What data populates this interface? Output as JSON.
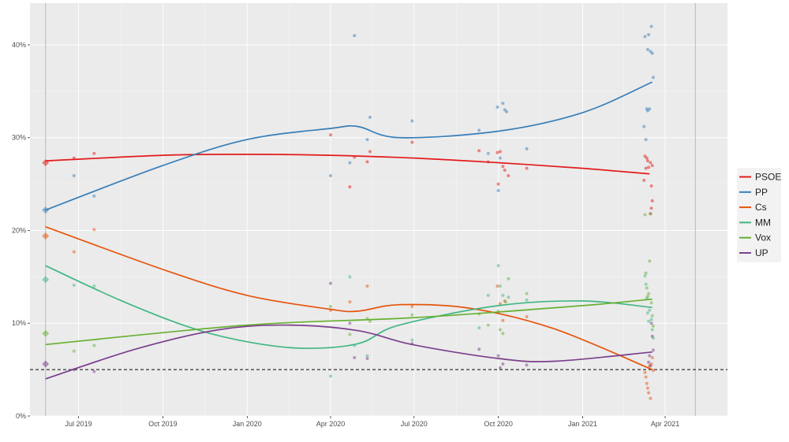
{
  "chart_data": {
    "type": "scatter",
    "title": "",
    "xlabel": "",
    "ylabel": "",
    "x_axis": {
      "type": "date",
      "range": [
        "2019-05-09",
        "2021-06-08"
      ],
      "ticks": [
        {
          "date": "2019-07-01",
          "label": "Jul 2019"
        },
        {
          "date": "2019-10-01",
          "label": "Oct 2019"
        },
        {
          "date": "2020-01-01",
          "label": "Jan 2020"
        },
        {
          "date": "2020-04-01",
          "label": "Apr 2020"
        },
        {
          "date": "2020-07-01",
          "label": "Jul 2020"
        },
        {
          "date": "2020-10-01",
          "label": "Oct 2020"
        },
        {
          "date": "2021-01-01",
          "label": "Jan 2021"
        },
        {
          "date": "2021-04-01",
          "label": "Apr 2021"
        }
      ]
    },
    "y_axis": {
      "range": [
        0,
        44.5
      ],
      "ticks": [
        {
          "value": 0,
          "label": "0%"
        },
        {
          "value": 10,
          "label": "10%"
        },
        {
          "value": 20,
          "label": "20%"
        },
        {
          "value": 30,
          "label": "30%"
        },
        {
          "value": 40,
          "label": "40%"
        }
      ]
    },
    "reference_lines": [
      {
        "kind": "vertical",
        "date": "2019-05-26"
      },
      {
        "kind": "vertical",
        "date": "2021-05-04"
      },
      {
        "kind": "horizontal",
        "value": 5,
        "style": "dashed"
      }
    ],
    "legend": {
      "position": "right",
      "entries": [
        "PSOE",
        "PP",
        "Cs",
        "MM",
        "Vox",
        "UP"
      ]
    },
    "series": [
      {
        "name": "PSOE",
        "color": "#E41A1C",
        "election": {
          "date": "2019-05-26",
          "value": 27.3
        },
        "trend": [
          [
            "2019-05-26",
            27.5
          ],
          [
            "2019-10-01",
            28.1
          ],
          [
            "2020-01-01",
            28.2
          ],
          [
            "2020-04-01",
            28.1
          ],
          [
            "2020-07-01",
            27.8
          ],
          [
            "2020-10-01",
            27.3
          ],
          [
            "2021-01-01",
            26.7
          ],
          [
            "2021-03-15",
            26.1
          ]
        ],
        "polls": [
          [
            "2019-06-26",
            27.8
          ],
          [
            "2019-07-18",
            28.3
          ],
          [
            "2020-04-01",
            30.3
          ],
          [
            "2020-04-22",
            24.7
          ],
          [
            "2020-04-27",
            27.9
          ],
          [
            "2020-05-11",
            27.4
          ],
          [
            "2020-05-14",
            28.5
          ],
          [
            "2020-06-29",
            29.5
          ],
          [
            "2020-09-10",
            28.6
          ],
          [
            "2020-09-20",
            27.4
          ],
          [
            "2020-09-30",
            28.4
          ],
          [
            "2020-10-01",
            25.0
          ],
          [
            "2020-10-03",
            28.5
          ],
          [
            "2020-10-06",
            26.9
          ],
          [
            "2020-10-08",
            26.5
          ],
          [
            "2020-10-12",
            25.9
          ],
          [
            "2020-11-01",
            26.7
          ],
          [
            "2021-03-10",
            28.0
          ],
          [
            "2021-03-11",
            26.7
          ],
          [
            "2021-03-12",
            27.8
          ],
          [
            "2021-03-13",
            27.5
          ],
          [
            "2021-03-14",
            26.8
          ],
          [
            "2021-03-16",
            27.3
          ],
          [
            "2021-03-17",
            24.8
          ],
          [
            "2021-03-18",
            23.2
          ],
          [
            "2021-03-17",
            22.4
          ],
          [
            "2021-03-16",
            21.8
          ],
          [
            "2021-03-09",
            25.4
          ],
          [
            "2021-03-18",
            27.0
          ]
        ]
      },
      {
        "name": "PP",
        "color": "#377EB8",
        "election": {
          "date": "2019-05-26",
          "value": 22.2
        },
        "trend": [
          [
            "2019-05-26",
            22.2
          ],
          [
            "2019-10-01",
            27.0
          ],
          [
            "2020-01-01",
            29.8
          ],
          [
            "2020-04-01",
            31.0
          ],
          [
            "2020-05-01",
            31.2
          ],
          [
            "2020-06-15",
            30.0
          ],
          [
            "2020-10-01",
            30.7
          ],
          [
            "2021-01-01",
            32.7
          ],
          [
            "2021-03-18",
            36.0
          ]
        ],
        "polls": [
          [
            "2019-06-26",
            25.9
          ],
          [
            "2019-07-18",
            23.7
          ],
          [
            "2020-04-01",
            25.9
          ],
          [
            "2020-04-22",
            27.3
          ],
          [
            "2020-04-27",
            41.0
          ],
          [
            "2020-05-11",
            29.8
          ],
          [
            "2020-05-14",
            32.2
          ],
          [
            "2020-06-29",
            31.8
          ],
          [
            "2020-09-10",
            30.8
          ],
          [
            "2020-09-20",
            28.3
          ],
          [
            "2020-09-30",
            33.3
          ],
          [
            "2020-10-03",
            27.8
          ],
          [
            "2020-10-06",
            33.7
          ],
          [
            "2020-10-08",
            33.0
          ],
          [
            "2020-10-10",
            32.8
          ],
          [
            "2020-10-01",
            24.3
          ],
          [
            "2020-11-01",
            28.8
          ],
          [
            "2021-03-10",
            40.9
          ],
          [
            "2021-03-11",
            29.8
          ],
          [
            "2021-03-12",
            33.1
          ],
          [
            "2021-03-13",
            39.5
          ],
          [
            "2021-03-14",
            41.1
          ],
          [
            "2021-03-15",
            33.1
          ],
          [
            "2021-03-16",
            39.3
          ],
          [
            "2021-03-17",
            42.0
          ],
          [
            "2021-03-18",
            39.1
          ],
          [
            "2021-03-19",
            36.5
          ],
          [
            "2021-03-09",
            31.2
          ],
          [
            "2021-03-13",
            32.9
          ]
        ]
      },
      {
        "name": "Cs",
        "color": "#E6550D",
        "election": {
          "date": "2019-05-26",
          "value": 19.4
        },
        "trend": [
          [
            "2019-05-26",
            20.4
          ],
          [
            "2019-10-01",
            15.8
          ],
          [
            "2020-01-01",
            13.0
          ],
          [
            "2020-04-01",
            11.5
          ],
          [
            "2020-05-01",
            11.3
          ],
          [
            "2020-06-15",
            12.0
          ],
          [
            "2020-09-01",
            11.6
          ],
          [
            "2020-12-01",
            9.4
          ],
          [
            "2021-03-18",
            5.0
          ]
        ],
        "polls": [
          [
            "2019-06-26",
            17.7
          ],
          [
            "2019-07-18",
            20.1
          ],
          [
            "2020-04-01",
            11.4
          ],
          [
            "2020-04-22",
            12.3
          ],
          [
            "2020-05-11",
            14.0
          ],
          [
            "2020-06-29",
            11.8
          ],
          [
            "2020-09-30",
            14.0
          ],
          [
            "2020-10-03",
            12.1
          ],
          [
            "2020-10-06",
            10.3
          ],
          [
            "2020-10-08",
            12.4
          ],
          [
            "2020-11-01",
            10.7
          ],
          [
            "2021-03-10",
            4.7
          ],
          [
            "2021-03-11",
            4.2
          ],
          [
            "2021-03-12",
            3.5
          ],
          [
            "2021-03-13",
            3.0
          ],
          [
            "2021-03-14",
            2.5
          ],
          [
            "2021-03-16",
            1.9
          ],
          [
            "2021-03-17",
            5.6
          ],
          [
            "2021-03-18",
            6.3
          ],
          [
            "2021-03-19",
            4.9
          ],
          [
            "2021-03-15",
            5.4
          ]
        ]
      },
      {
        "name": "MM",
        "color": "#41B782",
        "election": {
          "date": "2019-05-26",
          "value": 14.7
        },
        "trend": [
          [
            "2019-05-26",
            16.2
          ],
          [
            "2019-08-15",
            12.5
          ],
          [
            "2019-11-01",
            9.5
          ],
          [
            "2020-01-01",
            8.0
          ],
          [
            "2020-03-01",
            7.3
          ],
          [
            "2020-05-01",
            7.8
          ],
          [
            "2020-06-15",
            9.8
          ],
          [
            "2020-10-01",
            11.9
          ],
          [
            "2021-01-01",
            12.4
          ],
          [
            "2021-03-18",
            11.7
          ]
        ],
        "polls": [
          [
            "2019-06-26",
            14.1
          ],
          [
            "2019-07-18",
            14.0
          ],
          [
            "2020-04-01",
            4.3
          ],
          [
            "2020-04-22",
            15.0
          ],
          [
            "2020-04-27",
            7.6
          ],
          [
            "2020-05-11",
            6.5
          ],
          [
            "2020-06-29",
            8.2
          ],
          [
            "2020-09-10",
            9.5
          ],
          [
            "2020-09-20",
            13.0
          ],
          [
            "2020-10-01",
            16.2
          ],
          [
            "2020-10-03",
            14.0
          ],
          [
            "2020-10-06",
            13.0
          ],
          [
            "2020-10-12",
            12.8
          ],
          [
            "2020-11-01",
            12.5
          ],
          [
            "2021-03-10",
            15.1
          ],
          [
            "2021-03-11",
            14.2
          ],
          [
            "2021-03-12",
            12.7
          ],
          [
            "2021-03-13",
            11.1
          ],
          [
            "2021-03-14",
            10.2
          ],
          [
            "2021-03-15",
            11.4
          ],
          [
            "2021-03-17",
            10.4
          ],
          [
            "2021-03-18",
            9.3
          ],
          [
            "2021-03-19",
            8.4
          ]
        ]
      },
      {
        "name": "Vox",
        "color": "#66B032",
        "election": {
          "date": "2019-05-26",
          "value": 8.9
        },
        "trend": [
          [
            "2019-05-26",
            7.7
          ],
          [
            "2020-01-01",
            9.8
          ],
          [
            "2020-07-01",
            10.6
          ],
          [
            "2021-01-01",
            11.9
          ],
          [
            "2021-03-18",
            12.6
          ]
        ],
        "polls": [
          [
            "2019-06-26",
            7.0
          ],
          [
            "2019-07-18",
            7.6
          ],
          [
            "2020-04-01",
            11.8
          ],
          [
            "2020-04-22",
            8.8
          ],
          [
            "2020-05-11",
            10.5
          ],
          [
            "2020-05-14",
            10.2
          ],
          [
            "2020-06-29",
            10.9
          ],
          [
            "2020-09-10",
            11.0
          ],
          [
            "2020-09-20",
            9.8
          ],
          [
            "2020-10-01",
            11.3
          ],
          [
            "2020-10-03",
            9.3
          ],
          [
            "2020-10-06",
            8.9
          ],
          [
            "2020-10-09",
            12.3
          ],
          [
            "2020-10-12",
            14.8
          ],
          [
            "2020-11-01",
            13.2
          ],
          [
            "2021-03-10",
            21.7
          ],
          [
            "2021-03-11",
            15.4
          ],
          [
            "2021-03-12",
            13.8
          ],
          [
            "2021-03-13",
            12.9
          ],
          [
            "2021-03-14",
            13.2
          ],
          [
            "2021-03-15",
            16.7
          ],
          [
            "2021-03-16",
            21.8
          ],
          [
            "2021-03-17",
            12.2
          ],
          [
            "2021-03-18",
            10.8
          ],
          [
            "2021-03-19",
            9.7
          ]
        ]
      },
      {
        "name": "UP",
        "color": "#7B3F8C",
        "election": {
          "date": "2019-05-26",
          "value": 5.6
        },
        "trend": [
          [
            "2019-05-26",
            4.0
          ],
          [
            "2019-09-01",
            7.2
          ],
          [
            "2019-12-01",
            9.3
          ],
          [
            "2020-02-15",
            9.8
          ],
          [
            "2020-05-01",
            9.2
          ],
          [
            "2020-06-29",
            7.7
          ],
          [
            "2020-10-01",
            6.2
          ],
          [
            "2020-12-01",
            5.9
          ],
          [
            "2021-03-18",
            6.9
          ]
        ],
        "polls": [
          [
            "2019-06-26",
            5.0
          ],
          [
            "2019-07-18",
            4.8
          ],
          [
            "2020-04-01",
            14.3
          ],
          [
            "2020-04-22",
            10.0
          ],
          [
            "2020-04-27",
            6.3
          ],
          [
            "2020-05-11",
            6.2
          ],
          [
            "2020-06-29",
            7.8
          ],
          [
            "2020-09-10",
            7.2
          ],
          [
            "2020-10-01",
            6.5
          ],
          [
            "2020-10-03",
            5.2
          ],
          [
            "2020-10-06",
            5.6
          ],
          [
            "2020-11-01",
            5.5
          ],
          [
            "2021-03-14",
            5.8
          ],
          [
            "2021-03-16",
            5.4
          ],
          [
            "2021-03-17",
            10.0
          ],
          [
            "2021-03-18",
            8.6
          ],
          [
            "2021-03-19",
            7.1
          ],
          [
            "2021-03-15",
            6.5
          ]
        ]
      }
    ]
  }
}
